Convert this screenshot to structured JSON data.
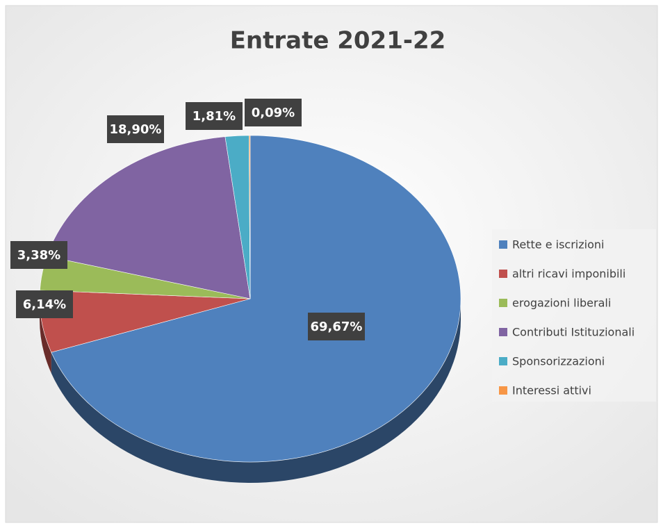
{
  "chart_data": {
    "type": "pie",
    "title": "Entrate 2021-22",
    "categories": [
      "Rette e iscrizioni",
      "altri ricavi imponibili",
      "erogazioni liberali",
      "Contributi Istituzionali",
      "Sponsorizzazioni",
      "Interessi attivi"
    ],
    "values": [
      69.67,
      6.14,
      3.38,
      18.9,
      1.81,
      0.09
    ],
    "value_labels": [
      "69,67%",
      "6,14%",
      "3,38%",
      "18,90%",
      "1,81%",
      "0,09%"
    ],
    "colors": [
      "#4f81bd",
      "#c0504d",
      "#9bbb59",
      "#8064a2",
      "#4bacc6",
      "#f79646"
    ],
    "legend": "right"
  }
}
